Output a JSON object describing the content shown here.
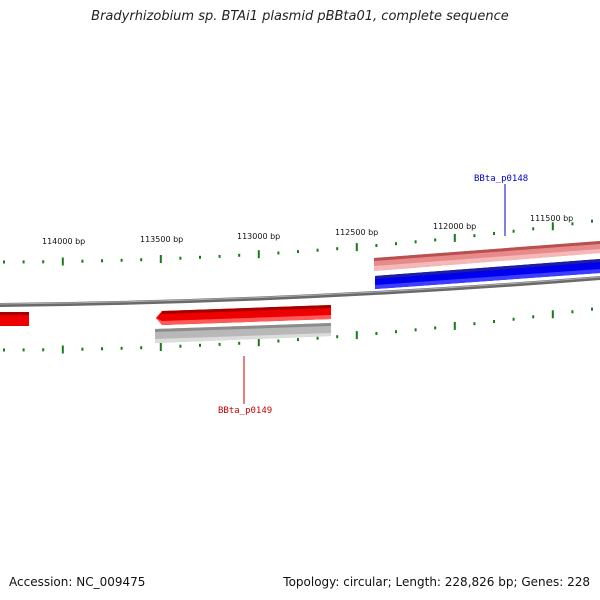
{
  "header": {
    "title": "Bradyrhizobium sp. BTAi1 plasmid pBBta01, complete sequence"
  },
  "footer": {
    "accession": "Accession: NC_009475",
    "summary": "Topology: circular; Length: 228,826 bp; Genes: 228"
  },
  "scale": {
    "tick_labels": [
      "114000 bp",
      "113500 bp",
      "113000 bp",
      "112500 bp",
      "112000 bp",
      "111500 bp"
    ]
  },
  "genes": [
    {
      "name": "BBta_p0148",
      "color": "#0000cc"
    },
    {
      "name": "BBta_p0149",
      "color": "#cc0000"
    }
  ],
  "colors": {
    "forward_cds": "#0000ee",
    "reverse_cds": "#ee0000",
    "forward_gene_shadow": "#e88a8a",
    "reverse_gene_shadow": "#b5b5b5",
    "backbone": "#777777",
    "tick": "#1a7a1a"
  }
}
